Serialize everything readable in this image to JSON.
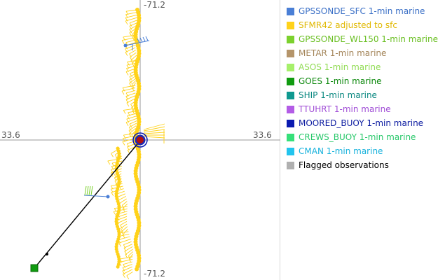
{
  "map": {
    "top_longitude": "-71.2",
    "bottom_longitude": "-71.2",
    "left_latitude": "33.6",
    "right_latitude": "33.6"
  },
  "legend": {
    "items": [
      {
        "label": "GPSSONDE_SFC 1-min marine",
        "color": "#4a7fd6",
        "text_color": "#3a6fc6"
      },
      {
        "label": "SFMR42 adjusted to sfc",
        "color": "#ffd21a",
        "text_color": "#e0b800"
      },
      {
        "label": "GPSSONDE_WL150 1-min marine",
        "color": "#7cd12e",
        "text_color": "#6abf22"
      },
      {
        "label": "METAR 1-min marine",
        "color": "#b5956a",
        "text_color": "#a38458"
      },
      {
        "label": "ASOS 1-min marine",
        "color": "#a6f06b",
        "text_color": "#92dc55"
      },
      {
        "label": "GOES 1-min marine",
        "color": "#109b10",
        "text_color": "#0c880c"
      },
      {
        "label": "SHIP 1-min marine",
        "color": "#0f9990",
        "text_color": "#0a8880"
      },
      {
        "label": "TTUHRT 1-min marine",
        "color": "#b35ce6",
        "text_color": "#a04dd6"
      },
      {
        "label": "MOORED_BUOY 1-min marine",
        "color": "#0a1ab0",
        "text_color": "#0a1aa0"
      },
      {
        "label": "CREWS_BUOY 1-min marine",
        "color": "#36e07a",
        "text_color": "#28c86a"
      },
      {
        "label": "CMAN 1-min marine",
        "color": "#22c4ee",
        "text_color": "#18b2dc"
      },
      {
        "label": "Flagged observations",
        "color": "#b0b0b0",
        "text_color": "#000000"
      }
    ]
  }
}
